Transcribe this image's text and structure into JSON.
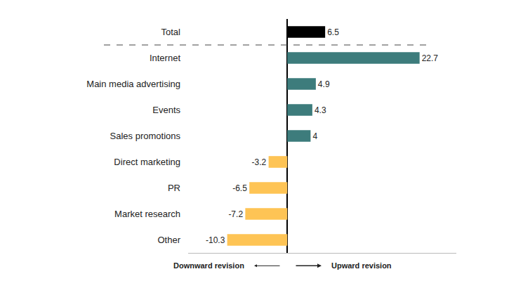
{
  "chart_data": {
    "type": "bar",
    "orientation": "horizontal",
    "categories": [
      "Total",
      "Internet",
      "Main media advertising",
      "Events",
      "Sales promotions",
      "Direct marketing",
      "PR",
      "Market research",
      "Other"
    ],
    "values": [
      6.5,
      22.7,
      4.9,
      4.3,
      4.0,
      -3.2,
      -6.5,
      -7.2,
      -10.3
    ],
    "colors": [
      "#000000",
      "#3d7c7c",
      "#3d7c7c",
      "#3d7c7c",
      "#3d7c7c",
      "#fec455",
      "#fec455",
      "#fec455",
      "#fec455"
    ],
    "data_labels": true,
    "tick_labels": "y",
    "xlim": [
      -17,
      29
    ],
    "xticks": [
      0
    ],
    "grid": true,
    "annotations": [
      "Downward revision",
      "Upward revision"
    ]
  }
}
